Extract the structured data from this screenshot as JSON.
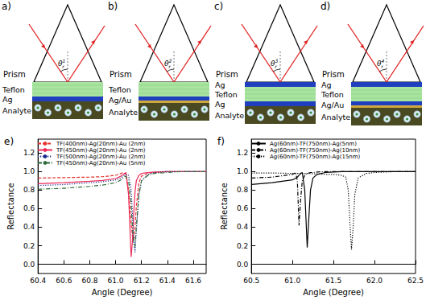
{
  "panels": [
    {
      "label": "a)",
      "prism": "Prism",
      "angle": {
        "symbol": "θ",
        "sub": "r",
        "sup": "1"
      },
      "layers": [
        "Teflon",
        "Ag",
        "Analyte"
      ]
    },
    {
      "label": "b)",
      "prism": "Prism",
      "angle": {
        "symbol": "θ",
        "sub": "r",
        "sup": "2"
      },
      "layers": [
        "Teflon",
        "Ag/Au",
        "Analyte"
      ]
    },
    {
      "label": "c)",
      "prism": "Prism",
      "angle": {
        "symbol": "θ",
        "sub": "r",
        "sup": "3"
      },
      "layers": [
        "Ag",
        "Teflon",
        "Ag",
        "Analyte"
      ]
    },
    {
      "label": "d)",
      "prism": "Prism",
      "angle": {
        "symbol": "θ",
        "sub": "r",
        "sup": "4"
      },
      "layers": [
        "Ag",
        "Teflon",
        "Ag/Au",
        "Analyte"
      ]
    }
  ],
  "chart_data": [
    {
      "type": "line",
      "title": "e)",
      "x_label": "Angle (Degree)",
      "y_label": "Reflectance",
      "x": [
        60.4,
        60.6,
        60.8,
        60.9,
        61.0,
        61.04,
        61.06,
        61.08,
        61.1,
        61.12,
        61.13,
        61.14,
        61.15,
        61.16,
        61.18,
        61.2,
        61.25,
        61.3,
        61.4,
        61.5,
        61.6,
        61.7
      ],
      "series": [
        {
          "name": "TF(400nm)-Ag(20nm)-Au (2nm)",
          "color": "#e8312f",
          "line_style": "dashed",
          "values": [
            0.93,
            0.935,
            0.94,
            0.945,
            0.96,
            0.98,
            0.99,
            0.97,
            0.8,
            0.45,
            0.3,
            0.27,
            0.4,
            0.62,
            0.88,
            0.95,
            0.985,
            0.99,
            1,
            1,
            1,
            1
          ]
        },
        {
          "name": "TF(450nm)-Ag(20nm)-Au (2nm)",
          "color": "#ee2a5a",
          "line_style": "solid",
          "values": [
            0.87,
            0.88,
            0.895,
            0.905,
            0.925,
            0.95,
            0.97,
            0.99,
            0.75,
            0.08,
            0.25,
            0.55,
            0.78,
            0.9,
            0.96,
            0.98,
            0.99,
            0.995,
            1,
            1,
            1,
            1
          ]
        },
        {
          "name": "TF(500nm)-Ag(20nm)-Au (2nm)",
          "color": "#1a2a8c",
          "line_style": "dotted",
          "values": [
            0.85,
            0.86,
            0.88,
            0.89,
            0.91,
            0.93,
            0.95,
            0.97,
            0.96,
            0.8,
            0.55,
            0.25,
            0.13,
            0.35,
            0.75,
            0.9,
            0.97,
            0.99,
            1,
            1,
            1,
            1
          ]
        },
        {
          "name": "TF(450nm)-Ag(20nm)-Au (5nm)",
          "color": "#2e6b3a",
          "line_style": "dashdot",
          "values": [
            0.81,
            0.82,
            0.84,
            0.855,
            0.88,
            0.91,
            0.935,
            0.95,
            0.9,
            0.65,
            0.4,
            0.22,
            0.19,
            0.4,
            0.75,
            0.9,
            0.96,
            0.98,
            0.99,
            1,
            1,
            1
          ]
        }
      ],
      "xlim": [
        60.4,
        61.7
      ],
      "xticks": [
        60.4,
        60.6,
        60.8,
        {
          "value": 61,
          "label": "61.0"
        },
        61.2,
        61.4,
        61.6
      ],
      "ylim": [
        -0.1,
        1.35
      ],
      "yticks": [
        {
          "value": 0,
          "label": "0.0"
        },
        0.2,
        0.4,
        0.6,
        0.8,
        {
          "value": 1,
          "label": "1.0"
        },
        1.2
      ],
      "grid": false,
      "legend": "upper left"
    },
    {
      "type": "line",
      "title": "f)",
      "x_label": "Angle (Degree)",
      "y_label": "Reflectance",
      "x": [
        60.5,
        60.75,
        61.0,
        61.04,
        61.06,
        61.08,
        61.1,
        61.12,
        61.15,
        61.18,
        61.2,
        61.22,
        61.25,
        61.3,
        61.4,
        61.5,
        61.6,
        61.65,
        61.68,
        61.7,
        61.72,
        61.74,
        61.76,
        61.8,
        61.9,
        62.0,
        62.25,
        62.5
      ],
      "series": [
        {
          "name": "Ag(60nm)-TF(750nm)-Ag(5nm)",
          "color": "#000000",
          "line_style": "solid",
          "values": [
            0.86,
            0.88,
            0.91,
            0.93,
            0.94,
            0.96,
            0.98,
            0.99,
            0.8,
            0.18,
            0.5,
            0.8,
            0.93,
            0.97,
            0.99,
            0.995,
            1,
            1,
            1,
            1,
            1,
            1,
            1,
            1,
            1,
            1,
            1,
            1
          ]
        },
        {
          "name": "Ag(60nm)-TF(750nm)-Ag(10nm)",
          "color": "#000000",
          "line_style": "dashdot",
          "values": [
            0.93,
            0.94,
            0.97,
            0.99,
            0.9,
            0.42,
            0.7,
            0.9,
            0.96,
            0.98,
            0.985,
            0.99,
            0.99,
            0.995,
            1,
            1,
            1,
            1,
            1,
            1,
            1,
            1,
            1,
            1,
            1,
            1,
            1,
            1
          ]
        },
        {
          "name": "Ag(60nm)-TF(750nm)-Ag(15nm)",
          "color": "#000000",
          "line_style": "dotted",
          "values": [
            0.985,
            0.985,
            0.98,
            0.98,
            0.98,
            0.98,
            0.98,
            0.98,
            0.98,
            0.98,
            0.98,
            0.98,
            0.975,
            0.975,
            0.97,
            0.97,
            0.96,
            0.94,
            0.8,
            0.45,
            0.16,
            0.4,
            0.75,
            0.93,
            0.98,
            0.99,
            1,
            1
          ]
        }
      ],
      "xlim": [
        60.5,
        62.5
      ],
      "xticks": [
        60.5,
        {
          "value": 61,
          "label": "61.0"
        },
        61.5,
        {
          "value": 62,
          "label": "62.0"
        },
        62.5
      ],
      "ylim": [
        -0.1,
        1.35
      ],
      "yticks": [
        {
          "value": 0,
          "label": "0.0"
        },
        0.2,
        0.4,
        0.6,
        0.8,
        {
          "value": 1,
          "label": "1.0"
        },
        1.2
      ],
      "grid": false,
      "legend": "upper left"
    }
  ]
}
